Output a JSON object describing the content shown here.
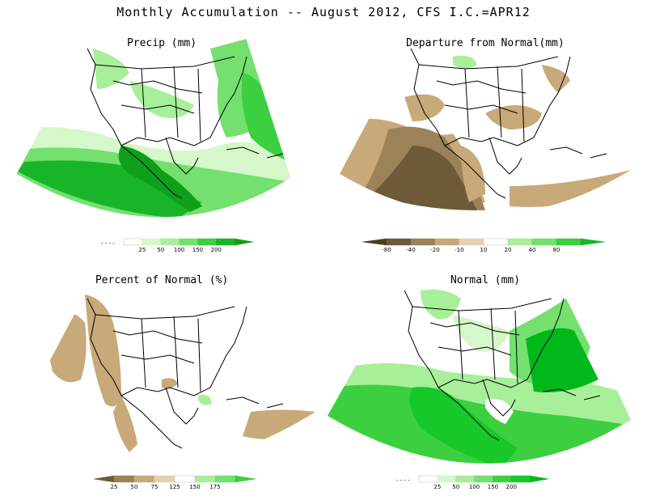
{
  "title": "Monthly Accumulation -- August 2012, CFS I.C.=APR12",
  "panels": [
    {
      "id": "precip",
      "title": "Precip (mm)",
      "legend": {
        "prefix_symbol": "- - - -",
        "ticks": [
          "25",
          "50",
          "100",
          "150",
          "200"
        ],
        "colors": [
          "#ffffff",
          "#d6f7c9",
          "#a8ef9a",
          "#74e06f",
          "#3ccf40",
          "#18b52a",
          "#0ea01b"
        ]
      }
    },
    {
      "id": "departure",
      "title": "Departure from Normal(mm)",
      "legend": {
        "ticks": [
          "-80",
          "-40",
          "-20",
          "-10",
          "10",
          "20",
          "40",
          "80"
        ],
        "colors": [
          "#4a3b22",
          "#6e5a38",
          "#9c8258",
          "#c8a97a",
          "#e6d1ae",
          "#ffffff",
          "#a8ef9a",
          "#74e06f",
          "#3ccf40",
          "#18b52a"
        ]
      }
    },
    {
      "id": "percent",
      "title": "Percent of Normal (%)",
      "legend": {
        "ticks": [
          "25",
          "50",
          "75",
          "125",
          "150",
          "175"
        ],
        "colors": [
          "#6e5a38",
          "#9c8258",
          "#c8a97a",
          "#e6d1ae",
          "#ffffff",
          "#a8ef9a",
          "#74e06f",
          "#3ccf40"
        ]
      }
    },
    {
      "id": "normal",
      "title": "Normal (mm)",
      "legend": {
        "prefix_symbol": "- - - -",
        "ticks": [
          "25",
          "50",
          "100",
          "150",
          "200"
        ],
        "colors": [
          "#ffffff",
          "#d6f7c9",
          "#a8ef9a",
          "#74e06f",
          "#3ccf40",
          "#18c82a",
          "#00b81a"
        ]
      }
    }
  ],
  "map_region": "North America, Gulf of Mexico, Caribbean",
  "colors": {
    "line": "#000000",
    "background": "#ffffff"
  }
}
